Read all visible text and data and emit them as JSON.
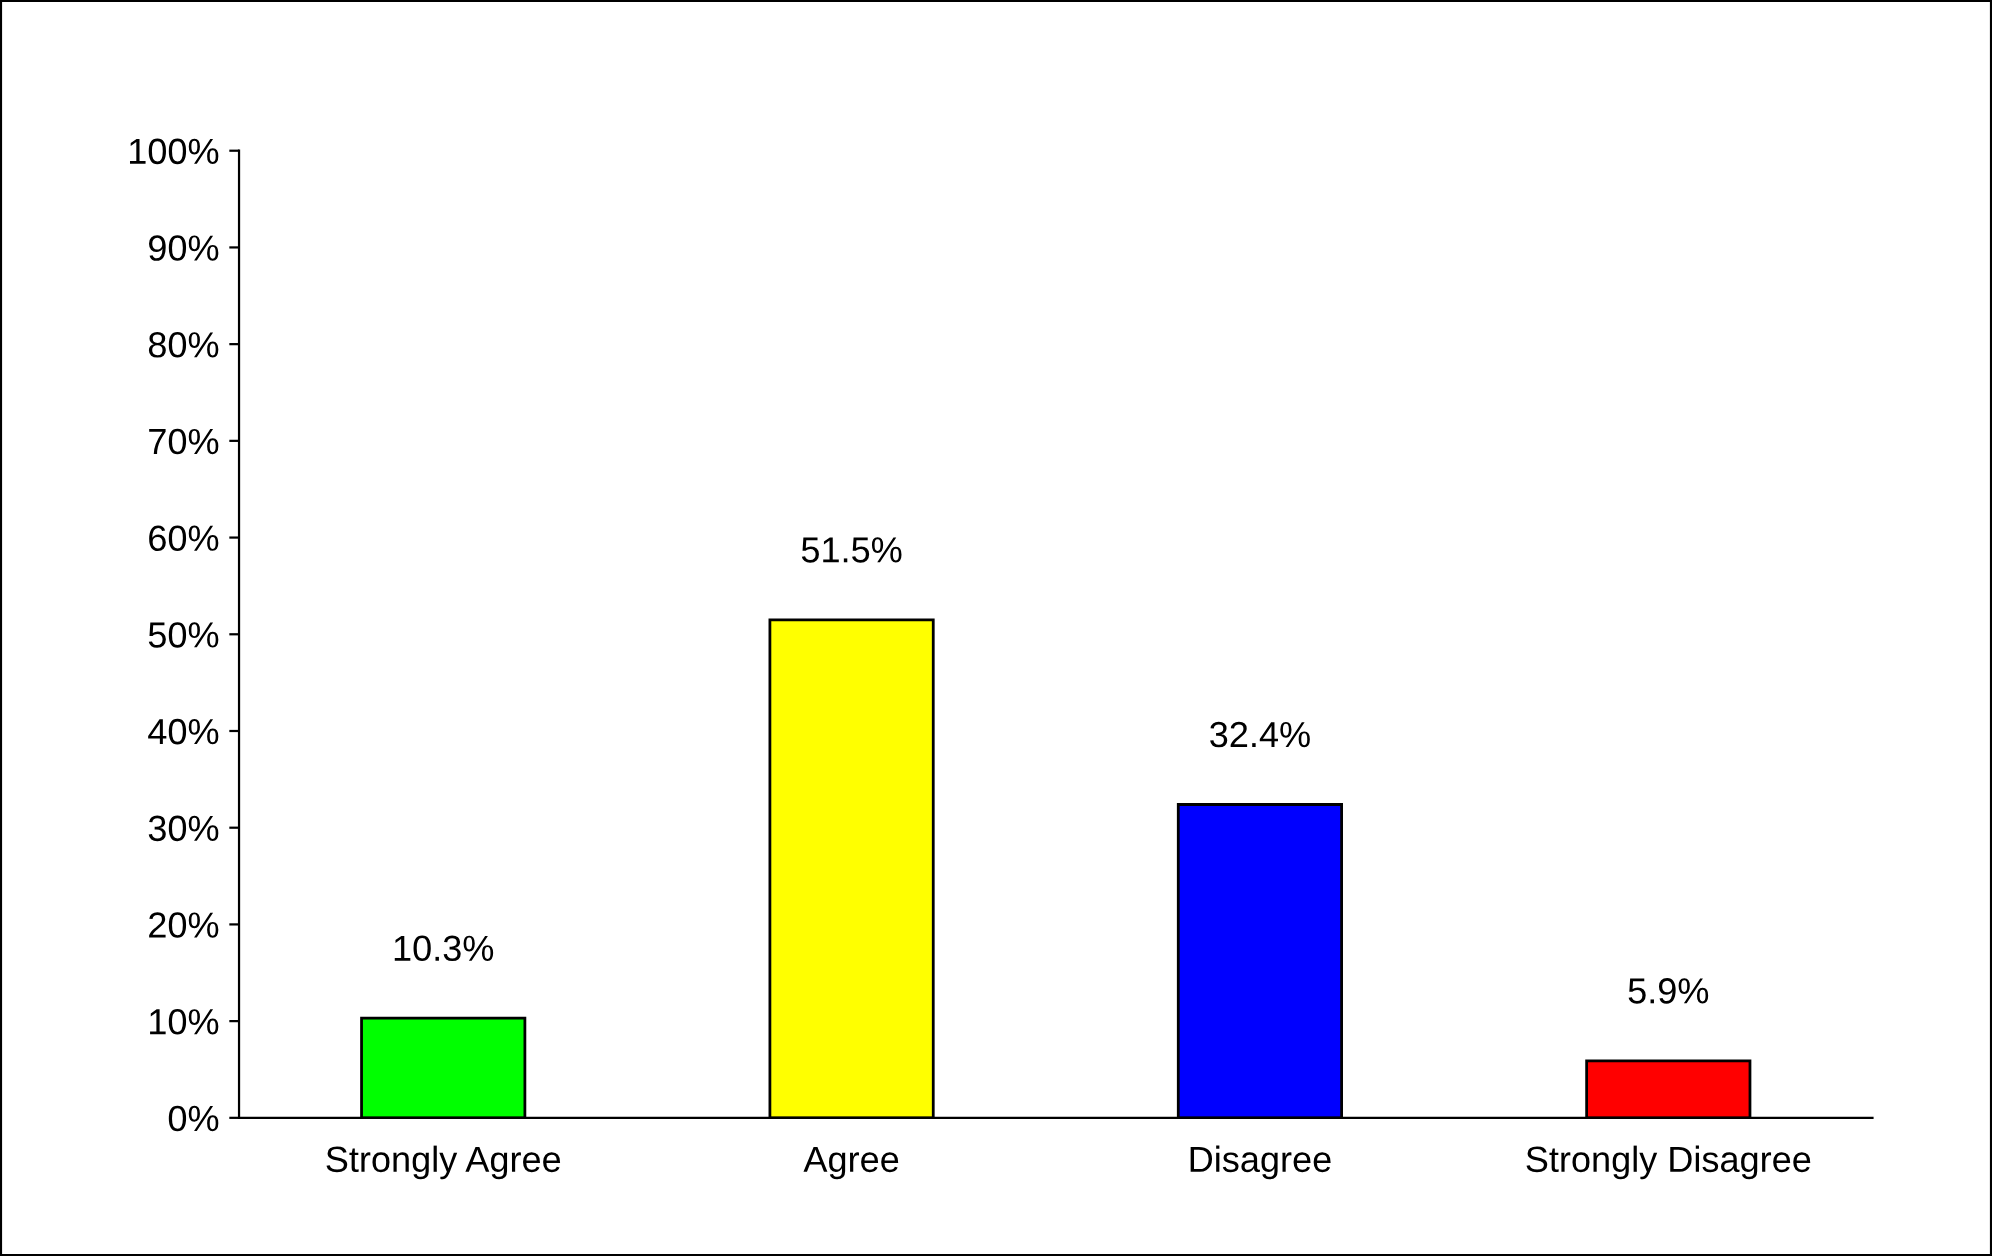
{
  "chart_data": {
    "type": "bar",
    "categories": [
      "Strongly Agree",
      "Agree",
      "Disagree",
      "Strongly Disagree"
    ],
    "values": [
      10.3,
      51.5,
      32.4,
      5.9
    ],
    "colors": [
      "#00ff00",
      "#ffff00",
      "#0000ff",
      "#ff0000"
    ],
    "value_labels": [
      "10.3%",
      "51.5%",
      "32.4%",
      "5.9%"
    ],
    "ylim": [
      0,
      100
    ],
    "yticks": [
      {
        "value": 0,
        "label": "0%"
      },
      {
        "value": 10,
        "label": "10%"
      },
      {
        "value": 20,
        "label": "20%"
      },
      {
        "value": 30,
        "label": "30%"
      },
      {
        "value": 40,
        "label": "40%"
      },
      {
        "value": 50,
        "label": "50%"
      },
      {
        "value": 60,
        "label": "60%"
      },
      {
        "value": 70,
        "label": "70%"
      },
      {
        "value": 80,
        "label": "80%"
      },
      {
        "value": 90,
        "label": "90%"
      },
      {
        "value": 100,
        "label": "100%"
      }
    ],
    "grid": false
  }
}
